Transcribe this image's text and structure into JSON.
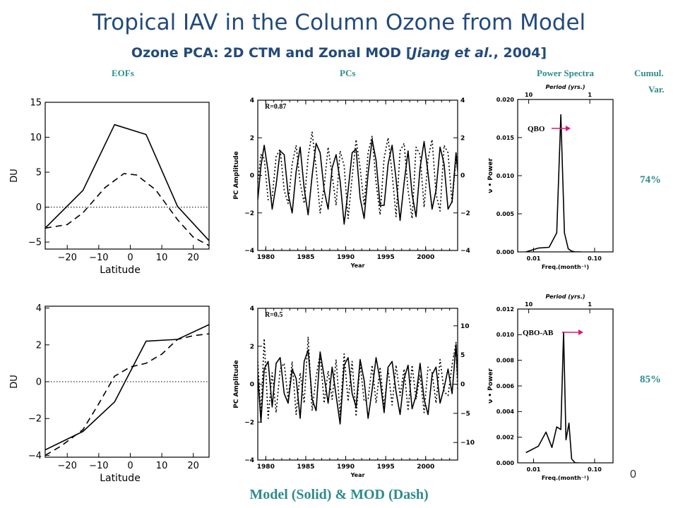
{
  "header": {
    "title": "Tropical IAV in the Column Ozone from Model",
    "subtitle_pre": "Ozone PCA: 2D CTM and Zonal MOD [",
    "subtitle_it": "Jiang et al.",
    "subtitle_post": ", 2004]"
  },
  "columns": {
    "eofs": "EOFs",
    "pcs": "PCs",
    "power": "Power Spectra",
    "cumul1": "Cumul.",
    "cumul2": "Var."
  },
  "cumulative": {
    "row1": "74%",
    "row2": "85%"
  },
  "footer": "Model (Solid) & MOD (Dash)",
  "page_number": "0",
  "colors": {
    "heading": "#234a7a",
    "teal": "#2e8b8b",
    "magenta": "#e0157a",
    "line": "#000000"
  },
  "chart_data": [
    {
      "id": "eof1",
      "type": "line",
      "xlabel": "Latitude",
      "ylabel": "DU",
      "xlim": [
        -27,
        25
      ],
      "ylim": [
        -6,
        15
      ],
      "xticks": [
        -20,
        -10,
        0,
        10,
        20
      ],
      "yticks": [
        -5,
        0,
        5,
        10,
        15
      ],
      "zero_line": true,
      "series": [
        {
          "style": "solid",
          "x": [
            -27,
            -15,
            -5,
            5,
            15,
            25
          ],
          "y": [
            -3,
            2.4,
            11.8,
            10.4,
            0.1,
            -4.8
          ]
        },
        {
          "style": "dash",
          "x": [
            -27,
            -20,
            -15,
            -8,
            -2,
            2,
            8,
            15,
            20,
            25
          ],
          "y": [
            -3,
            -2.5,
            -0.8,
            2.8,
            4.8,
            4.6,
            2.5,
            -1.8,
            -4.3,
            -5.5
          ]
        }
      ]
    },
    {
      "id": "eof2",
      "type": "line",
      "xlabel": "Latitude",
      "ylabel": "DU",
      "xlim": [
        -27,
        25
      ],
      "ylim": [
        -4.1,
        4.1
      ],
      "xticks": [
        -20,
        -10,
        0,
        10,
        20
      ],
      "yticks": [
        -4,
        -2,
        0,
        2,
        4
      ],
      "zero_line": true,
      "series": [
        {
          "style": "solid",
          "x": [
            -27,
            -15,
            -5,
            5,
            15,
            25
          ],
          "y": [
            -3.7,
            -2.7,
            -1.1,
            2.2,
            2.3,
            3.1
          ]
        },
        {
          "style": "dash",
          "x": [
            -27,
            -22,
            -15,
            -10,
            -5,
            0,
            5,
            10,
            15,
            20,
            25
          ],
          "y": [
            -4.0,
            -3.5,
            -2.6,
            -1.2,
            0.3,
            0.8,
            1.0,
            1.5,
            2.3,
            2.5,
            2.6
          ]
        }
      ]
    },
    {
      "id": "pc1",
      "type": "line",
      "annotation": "R=0.87",
      "xlabel": "Year",
      "ylabel": "PC Amplitude",
      "xlim": [
        1979,
        2004
      ],
      "ylim": [
        -4,
        4
      ],
      "ylim_right": [
        -4,
        4
      ],
      "xticks": [
        1980,
        1985,
        1990,
        1995,
        2000
      ],
      "yticks": [
        -4,
        -2,
        0,
        2,
        4
      ],
      "yticks_right": [
        -4,
        -2,
        0,
        2,
        4
      ],
      "series": [
        {
          "style": "solid",
          "x": [
            1979.0,
            1979.4,
            1979.8,
            1980.3,
            1980.8,
            1981.3,
            1981.8,
            1982.3,
            1982.8,
            1983.3,
            1983.8,
            1984.3,
            1984.8,
            1985.3,
            1985.8,
            1986.3,
            1986.8,
            1987.3,
            1987.8,
            1988.3,
            1988.8,
            1989.3,
            1989.8,
            1990.3,
            1990.8,
            1991.3,
            1991.8,
            1992.3,
            1992.8,
            1993.3,
            1993.8,
            1994.3,
            1994.8,
            1995.3,
            1995.8,
            1996.3,
            1996.8,
            1997.3,
            1997.8,
            1998.3,
            1998.8,
            1999.3,
            1999.8,
            2000.3,
            2000.8,
            2001.3,
            2001.8,
            2002.3,
            2002.8,
            2003.3,
            2003.8,
            2004.0
          ],
          "y": [
            -1.3,
            0.5,
            1.6,
            0.2,
            -1.8,
            -0.5,
            1.3,
            1.1,
            -1.0,
            -2.0,
            0.2,
            1.5,
            -0.7,
            -2.1,
            0.0,
            1.7,
            1.2,
            -0.8,
            -1.8,
            0.4,
            1.1,
            -0.3,
            -2.6,
            -0.8,
            1.2,
            1.4,
            -1.2,
            -2.3,
            0.1,
            1.9,
            0.8,
            -1.6,
            -1.6,
            0.6,
            1.6,
            -0.2,
            -2.4,
            -0.4,
            1.3,
            -1.0,
            -2.2,
            0.4,
            1.8,
            0.1,
            -1.8,
            -0.8,
            1.5,
            0.6,
            -1.8,
            -1.4,
            1.2,
            0.2
          ]
        },
        {
          "style": "dot",
          "x": [
            1979.0,
            1979.4,
            1979.8,
            1980.3,
            1980.8,
            1981.3,
            1981.8,
            1982.3,
            1982.8,
            1983.3,
            1983.8,
            1984.3,
            1984.8,
            1985.3,
            1985.8,
            1986.3,
            1986.8,
            1987.3,
            1987.8,
            1988.3,
            1988.8,
            1989.3,
            1989.8,
            1990.3,
            1990.8,
            1991.3,
            1991.8,
            1992.3,
            1992.8,
            1993.3,
            1993.8,
            1994.3,
            1994.8,
            1995.3,
            1995.8,
            1996.3,
            1996.8,
            1997.3,
            1997.8,
            1998.3,
            1998.8,
            1999.3,
            1999.8,
            2000.3,
            2000.8,
            2001.3,
            2001.8,
            2002.3,
            2002.8,
            2003.3,
            2003.8,
            2004.0
          ],
          "y": [
            -0.4,
            1.1,
            0.9,
            -1.3,
            -1.2,
            1.0,
            1.4,
            -0.8,
            -1.5,
            0.6,
            1.6,
            -0.4,
            -1.5,
            1.0,
            2.3,
            0.4,
            -2.0,
            -0.6,
            1.5,
            0.0,
            -1.6,
            1.3,
            0.5,
            -2.3,
            -0.1,
            1.9,
            0.4,
            -1.6,
            1.2,
            2.1,
            -0.4,
            -2.1,
            0.9,
            2.0,
            0.1,
            -2.2,
            1.3,
            1.7,
            -0.8,
            -2.3,
            1.5,
            1.1,
            -1.7,
            0.9,
            1.9,
            -1.0,
            -1.9,
            1.6,
            1.2,
            -1.5,
            0.9,
            1.0
          ]
        }
      ]
    },
    {
      "id": "pc2",
      "type": "line",
      "annotation": "R=0.5",
      "xlabel": "Year",
      "ylabel": "PC Amplitude",
      "xlim": [
        1979,
        2004
      ],
      "ylim": [
        -4,
        4
      ],
      "ylim_right": [
        -13,
        13
      ],
      "xticks": [
        1980,
        1985,
        1990,
        1995,
        2000
      ],
      "yticks": [
        -4,
        -2,
        0,
        2,
        4
      ],
      "yticks_right": [
        -10,
        -5,
        0,
        5,
        10
      ],
      "series": [
        {
          "style": "solid",
          "x": [
            1979.0,
            1979.4,
            1979.8,
            1980.3,
            1980.8,
            1981.3,
            1981.8,
            1982.3,
            1982.8,
            1983.3,
            1983.8,
            1984.3,
            1984.8,
            1985.3,
            1985.8,
            1986.3,
            1986.8,
            1987.3,
            1987.8,
            1988.3,
            1988.8,
            1989.3,
            1989.8,
            1990.3,
            1990.8,
            1991.3,
            1991.8,
            1992.3,
            1992.8,
            1993.3,
            1993.8,
            1994.3,
            1994.8,
            1995.3,
            1995.8,
            1996.3,
            1996.8,
            1997.3,
            1997.8,
            1998.3,
            1998.8,
            1999.3,
            1999.8,
            2000.3,
            2000.8,
            2001.3,
            2001.8,
            2002.3,
            2002.8,
            2003.3,
            2003.8,
            2004.0
          ],
          "y": [
            0.5,
            -2.0,
            0.8,
            1.2,
            -1.2,
            1.1,
            1.4,
            -0.5,
            -1.0,
            0.8,
            0.3,
            -1.8,
            1.2,
            1.8,
            -0.8,
            -1.4,
            1.7,
            0.4,
            -1.0,
            0.9,
            -0.6,
            -2.1,
            1.0,
            1.4,
            -0.5,
            -1.2,
            1.3,
            0.2,
            -1.8,
            -0.3,
            1.4,
            0.2,
            -1.5,
            0.9,
            1.2,
            -0.4,
            -1.6,
            0.3,
            1.0,
            -1.3,
            -0.6,
            1.1,
            -0.8,
            -1.6,
            0.5,
            0.9,
            -1.0,
            -0.2,
            0.8,
            -0.5,
            2.1,
            0.3
          ]
        },
        {
          "style": "dot",
          "x": [
            1979.0,
            1979.4,
            1979.8,
            1980.3,
            1980.8,
            1981.3,
            1981.8,
            1982.3,
            1982.8,
            1983.3,
            1983.8,
            1984.3,
            1984.8,
            1985.3,
            1985.8,
            1986.3,
            1986.8,
            1987.3,
            1987.8,
            1988.3,
            1988.8,
            1989.3,
            1989.8,
            1990.3,
            1990.8,
            1991.3,
            1991.8,
            1992.3,
            1992.8,
            1993.3,
            1993.8,
            1994.3,
            1994.8,
            1995.3,
            1995.8,
            1996.3,
            1996.8,
            1997.3,
            1997.8,
            1998.3,
            1998.8,
            1999.3,
            1999.8,
            2000.3,
            2000.8,
            2001.3,
            2001.8,
            2002.3,
            2002.8,
            2003.3,
            2003.8,
            2004.0
          ],
          "y": [
            1.2,
            -1.6,
            2.4,
            -1.8,
            0.6,
            -1.5,
            0.8,
            1.1,
            -0.8,
            1.2,
            -1.6,
            0.6,
            -1.0,
            2.5,
            -1.4,
            0.4,
            1.6,
            -1.0,
            0.7,
            -0.8,
            1.3,
            -1.6,
            1.6,
            -0.9,
            1.2,
            -1.7,
            1.1,
            -0.9,
            -0.8,
            1.0,
            -1.0,
            0.9,
            -1.2,
            0.8,
            -1.1,
            1.0,
            -0.6,
            0.8,
            -1.4,
            1.0,
            -0.8,
            0.5,
            -1.5,
            0.9,
            0.6,
            -1.0,
            1.3,
            -0.4,
            -0.6,
            1.0,
            2.2,
            -0.3
          ]
        }
      ]
    },
    {
      "id": "ps1",
      "type": "line",
      "annotation": "QBO",
      "xlabel": "Freq.(month⁻¹)",
      "ylabel": "ν • Power",
      "top_label": "Period (yrs.)",
      "xlim": [
        0.0055,
        0.2
      ],
      "xlog": true,
      "ylim": [
        0,
        0.02
      ],
      "xticks": [
        0.01,
        0.1
      ],
      "xtick_labels": [
        "0.01",
        "0.10"
      ],
      "top_ticks": [
        10,
        1
      ],
      "top_tick_labels": [
        "10",
        "1"
      ],
      "yticks": [
        0.0,
        0.005,
        0.01,
        0.015,
        0.02
      ],
      "ytick_labels": [
        "0.000",
        "0.005",
        "0.010",
        "0.015",
        "0.020"
      ],
      "series": [
        {
          "style": "solid",
          "x": [
            0.0075,
            0.012,
            0.018,
            0.024,
            0.028,
            0.032,
            0.037,
            0.042,
            0.048,
            0.06
          ],
          "y": [
            0.0,
            0.0005,
            0.0006,
            0.0025,
            0.018,
            0.0025,
            0.0004,
            0.0001,
            0.0,
            0.0
          ]
        }
      ]
    },
    {
      "id": "ps2",
      "type": "line",
      "annotation": "QBO-AB",
      "xlabel": "Freq.(month⁻¹)",
      "ylabel": "ν • Power",
      "top_label": "Period (yrs.)",
      "xlim": [
        0.0055,
        0.2
      ],
      "xlog": true,
      "ylim": [
        0,
        0.012
      ],
      "xticks": [
        0.01,
        0.1
      ],
      "xtick_labels": [
        "0.01",
        "0.10"
      ],
      "top_ticks": [
        10,
        1
      ],
      "top_tick_labels": [
        "10",
        "1"
      ],
      "yticks": [
        0.0,
        0.002,
        0.004,
        0.006,
        0.008,
        0.01,
        0.012
      ],
      "ytick_labels": [
        "0.000",
        "0.002",
        "0.004",
        "0.006",
        "0.008",
        "0.010",
        "0.012"
      ],
      "series": [
        {
          "style": "solid",
          "x": [
            0.0075,
            0.012,
            0.016,
            0.02,
            0.024,
            0.028,
            0.031,
            0.034,
            0.038,
            0.042,
            0.048,
            0.055
          ],
          "y": [
            0.0008,
            0.0013,
            0.0024,
            0.0012,
            0.0028,
            0.0026,
            0.0102,
            0.0018,
            0.0031,
            0.0003,
            0.0,
            0.0
          ]
        }
      ]
    }
  ]
}
